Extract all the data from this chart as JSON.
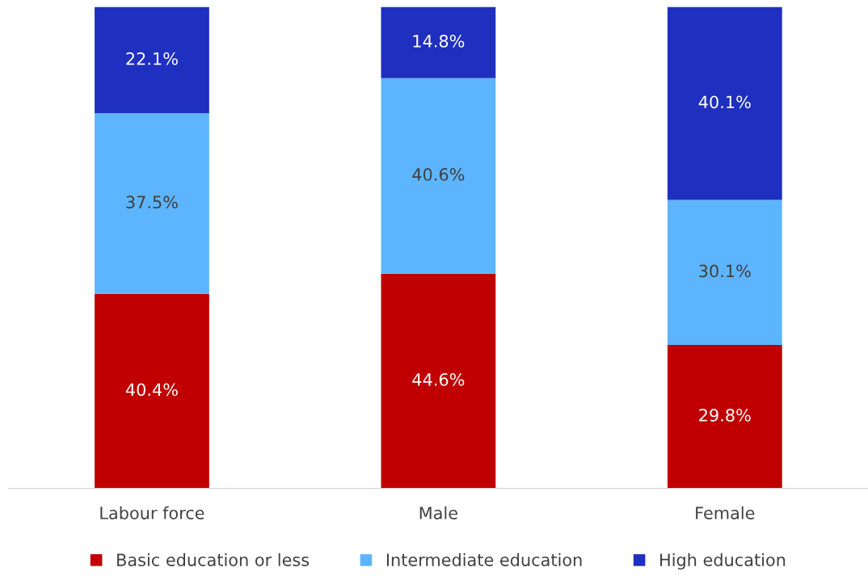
{
  "chart_data": {
    "type": "bar",
    "stacked": true,
    "categories": [
      "Labour force",
      "Male",
      "Female"
    ],
    "series": [
      {
        "name": "Basic education or less",
        "color": "#c00000",
        "values": [
          40.4,
          44.6,
          29.8
        ],
        "value_labels": [
          "40.4%",
          "44.6%",
          "29.8%"
        ]
      },
      {
        "name": "Intermediate education",
        "color": "#5eb5ff",
        "values": [
          37.5,
          40.6,
          30.1
        ],
        "value_labels": [
          "37.5%",
          "40.6%",
          "30.1%"
        ]
      },
      {
        "name": "High education",
        "color": "#1f2fbf",
        "values": [
          22.1,
          14.8,
          40.1
        ],
        "value_labels": [
          "22.1%",
          "14.8%",
          "40.1%"
        ]
      }
    ],
    "ylim": [
      0,
      100
    ],
    "tick_labels": "x",
    "grid": false,
    "legend": "bottom"
  }
}
